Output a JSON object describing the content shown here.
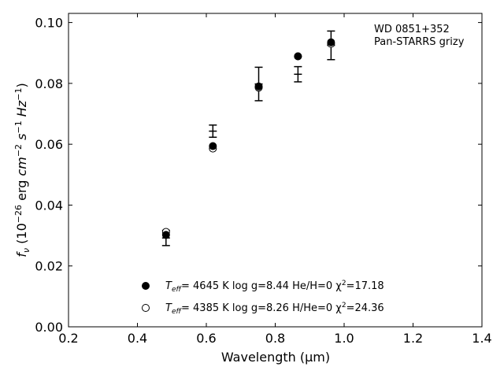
{
  "chart_data": {
    "type": "scatter",
    "xlabel": "Wavelength (μm)",
    "ylabel": "fν (10⁻²⁶ erg cm⁻² s⁻¹ Hz⁻¹)",
    "xlim": [
      0.2,
      1.4
    ],
    "ylim": [
      0.0,
      0.103
    ],
    "xticks": [
      "0.2",
      "0.4",
      "0.6",
      "0.8",
      "1.0",
      "1.2",
      "1.4"
    ],
    "yticks": [
      "0.00",
      "0.02",
      "0.04",
      "0.06",
      "0.08",
      "0.10"
    ],
    "annotation": [
      "WD 0851+352",
      "Pan-STARRS grizy"
    ],
    "legend_position": "lower-center",
    "observed": {
      "x": [
        0.483,
        0.619,
        0.752,
        0.866,
        0.962
      ],
      "y": [
        0.0292,
        0.0643,
        0.0798,
        0.083,
        0.0925
      ],
      "yerr": [
        0.0025,
        0.002,
        0.0055,
        0.0025,
        0.0047
      ]
    },
    "series": [
      {
        "name_parts": [
          "T",
          "eff",
          "=  4645 K  log g=8.44  He/H=0  χ",
          "2",
          "=17.18"
        ],
        "marker": "filled-circle",
        "x": [
          0.483,
          0.619,
          0.752,
          0.866,
          0.962
        ],
        "y": [
          0.0302,
          0.0594,
          0.079,
          0.0889,
          0.0935
        ]
      },
      {
        "name_parts": [
          "T",
          "eff",
          "=  4385 K  log g=8.26  H/He=0  χ",
          "2",
          "=24.36"
        ],
        "marker": "open-circle",
        "x": [
          0.483,
          0.619,
          0.752,
          0.866,
          0.962
        ],
        "y": [
          0.0312,
          0.0586,
          0.0786,
          0.0889,
          0.093
        ]
      }
    ]
  }
}
